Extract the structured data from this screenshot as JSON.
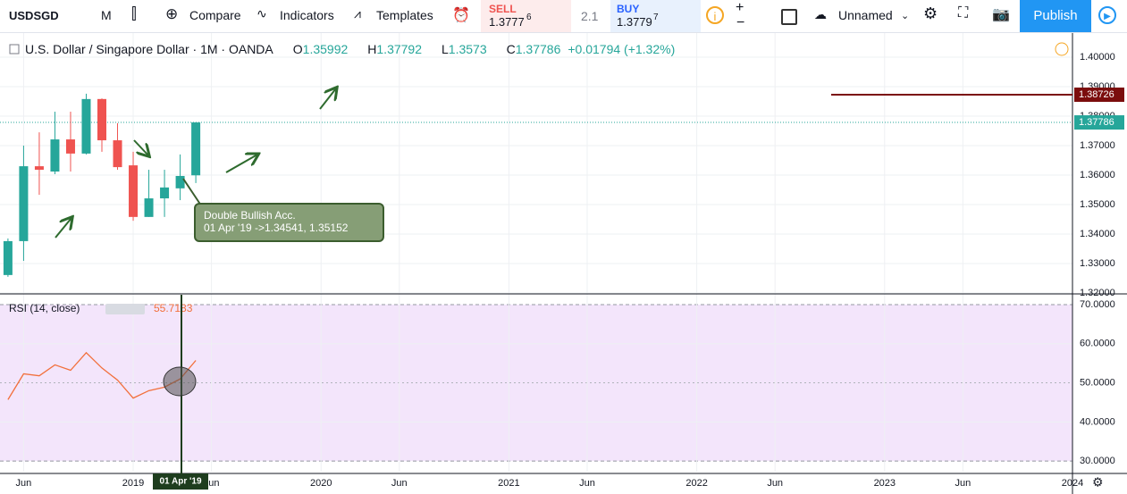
{
  "toolbar": {
    "symbol": "USDSGD",
    "interval": "M",
    "compare": "Compare",
    "indicators": "Indicators",
    "templates": "Templates",
    "sell_label": "SELL",
    "sell_price": "1.3777",
    "sell_pip": "6",
    "spread": "2.1",
    "buy_label": "BUY",
    "buy_price": "1.3779",
    "buy_pip": "7",
    "layout_name": "Unnamed",
    "publish": "Publish"
  },
  "chart_data": [
    {
      "type": "candlestick",
      "title": "U.S. Dollar / Singapore Dollar · 1M · OANDA",
      "x": [
        "2018-05",
        "2018-06",
        "2018-07",
        "2018-08",
        "2018-09",
        "2018-10",
        "2018-11",
        "2018-12",
        "2019-01",
        "2019-02",
        "2019-03",
        "2019-04",
        "2019-05"
      ],
      "open": [
        1.3261,
        1.3376,
        1.363,
        1.3612,
        1.3721,
        1.3673,
        1.3858,
        1.3718,
        1.3633,
        1.3458,
        1.3521,
        1.3555,
        1.35992
      ],
      "high": [
        1.3385,
        1.37,
        1.3745,
        1.3815,
        1.3815,
        1.3876,
        1.386,
        1.3776,
        1.3679,
        1.3618,
        1.3618,
        1.367,
        1.37792
      ],
      "low": [
        1.3255,
        1.3309,
        1.3533,
        1.3603,
        1.3612,
        1.367,
        1.3679,
        1.3618,
        1.3445,
        1.3458,
        1.3458,
        1.3515,
        1.3573
      ],
      "close": [
        1.3376,
        1.363,
        1.3618,
        1.3721,
        1.3673,
        1.3858,
        1.3718,
        1.3627,
        1.3458,
        1.3521,
        1.3558,
        1.3597,
        1.37786
      ],
      "up_color": "#26a69a",
      "down_color": "#ef5350",
      "ylim": [
        1.32,
        1.40848
      ],
      "yticks": [
        {
          "value": 1.32,
          "label": "1.32000"
        },
        {
          "value": 1.33,
          "label": "1.33000"
        },
        {
          "value": 1.34,
          "label": "1.34000"
        },
        {
          "value": 1.35,
          "label": "1.35000"
        },
        {
          "value": 1.36,
          "label": "1.36000"
        },
        {
          "value": 1.37,
          "label": "1.37000"
        },
        {
          "value": 1.38,
          "label": "1.38000"
        },
        {
          "value": 1.39,
          "label": "1.39000"
        },
        {
          "value": 1.4,
          "label": "1.40000"
        }
      ],
      "xlim": [
        "2018-04-16",
        "2024-01-01"
      ],
      "xticks": [
        {
          "value": "2018-06",
          "label": "Jun"
        },
        {
          "value": "2019-01",
          "label": "2019"
        },
        {
          "value": "2019-06",
          "label": "Jun"
        },
        {
          "value": "2020-01",
          "label": "2020"
        },
        {
          "value": "2020-06",
          "label": "Jun"
        },
        {
          "value": "2021-01",
          "label": "2021"
        },
        {
          "value": "2021-06",
          "label": "Jun"
        },
        {
          "value": "2022-01",
          "label": "2022"
        },
        {
          "value": "2022-06",
          "label": "Jun"
        },
        {
          "value": "2023-01",
          "label": "2023"
        },
        {
          "value": "2023-06",
          "label": "Jun"
        },
        {
          "value": "2024-01",
          "label": "2024"
        }
      ],
      "hline": 1.38726,
      "hline_color": "#7b0d0d",
      "change": "+0.01794 (+1.32%)",
      "annotation": [
        "Double Bullish Acc.",
        "01 Apr '19 ->1.34541, 1.35152"
      ],
      "crosshair_label": "01 Apr '19"
    },
    {
      "type": "line",
      "title": "RSI (14, close)",
      "color": "#f2703c",
      "x": [
        "2018-05",
        "2018-06",
        "2018-07",
        "2018-08",
        "2018-09",
        "2018-10",
        "2018-11",
        "2018-12",
        "2019-01",
        "2019-02",
        "2019-03",
        "2019-04",
        "2019-05"
      ],
      "values": [
        45.7,
        52.3,
        51.8,
        54.6,
        53.2,
        57.7,
        53.8,
        50.7,
        46.1,
        48,
        48.9,
        51,
        55.7183
      ],
      "ylim": [
        27.3,
        72.5
      ],
      "yticks": [
        {
          "value": 30,
          "label": "30.0000"
        },
        {
          "value": 40,
          "label": "40.0000"
        },
        {
          "value": 50,
          "label": "50.0000"
        },
        {
          "value": 60,
          "label": "60.0000"
        },
        {
          "value": 70,
          "label": "70.0000"
        }
      ]
    }
  ]
}
